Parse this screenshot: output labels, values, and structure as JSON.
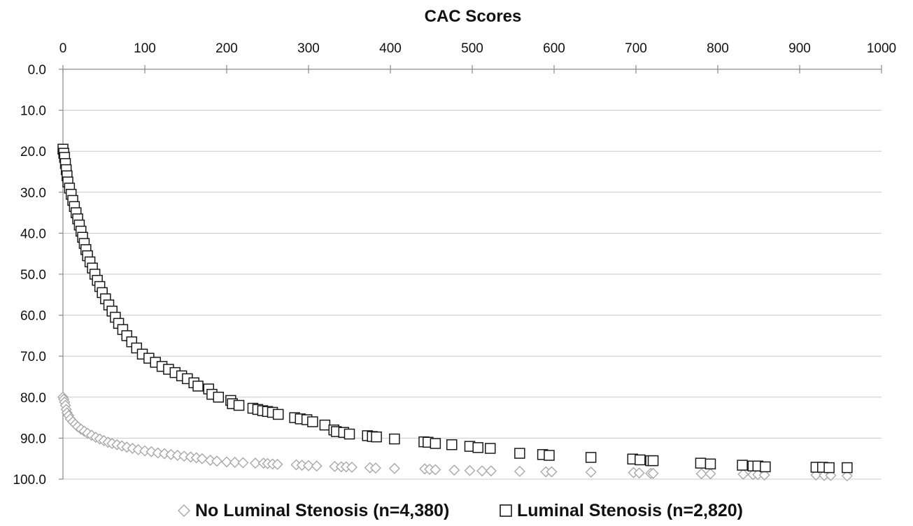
{
  "chart_data": {
    "type": "scatter",
    "title": "CAC Scores",
    "xlabel": "",
    "ylabel": "",
    "x_axis_position": "top",
    "y_axis_inverted": true,
    "xlim": [
      0,
      1000
    ],
    "ylim": [
      0,
      100
    ],
    "x_ticks": [
      "0",
      "100",
      "200",
      "300",
      "400",
      "500",
      "600",
      "700",
      "800",
      "900",
      "1000"
    ],
    "y_ticks": [
      "0.0",
      "10.0",
      "20.0",
      "30.0",
      "40.0",
      "50.0",
      "60.0",
      "70.0",
      "80.0",
      "90.0",
      "100.0"
    ],
    "grid": "horizontal",
    "legend_position": "bottom",
    "series": [
      {
        "name": "No Luminal Stenosis (n=4,380)",
        "marker": "diamond",
        "color": "#a8a8a8",
        "points": [
          [
            0,
            80.0
          ],
          [
            1,
            80.5
          ],
          [
            2,
            81.2
          ],
          [
            3,
            82.0
          ],
          [
            4,
            83.0
          ],
          [
            5,
            83.8
          ],
          [
            7,
            84.5
          ],
          [
            9,
            85.3
          ],
          [
            12,
            86.0
          ],
          [
            15,
            86.6
          ],
          [
            18,
            87.2
          ],
          [
            22,
            87.8
          ],
          [
            26,
            88.3
          ],
          [
            30,
            88.8
          ],
          [
            35,
            89.3
          ],
          [
            40,
            89.8
          ],
          [
            45,
            90.2
          ],
          [
            50,
            90.6
          ],
          [
            55,
            91.0
          ],
          [
            60,
            91.3
          ],
          [
            66,
            91.6
          ],
          [
            72,
            91.9
          ],
          [
            78,
            92.2
          ],
          [
            85,
            92.5
          ],
          [
            92,
            92.8
          ],
          [
            100,
            93.1
          ],
          [
            108,
            93.3
          ],
          [
            116,
            93.6
          ],
          [
            124,
            93.8
          ],
          [
            132,
            94.0
          ],
          [
            140,
            94.2
          ],
          [
            148,
            94.4
          ],
          [
            156,
            94.6
          ],
          [
            163,
            94.8
          ],
          [
            170,
            95.0
          ],
          [
            180,
            95.4
          ],
          [
            188,
            95.6
          ],
          [
            200,
            95.8
          ],
          [
            210,
            95.9
          ],
          [
            220,
            96.0
          ],
          [
            235,
            96.1
          ],
          [
            245,
            96.1
          ],
          [
            250,
            96.2
          ],
          [
            256,
            96.3
          ],
          [
            262,
            96.4
          ],
          [
            285,
            96.5
          ],
          [
            292,
            96.6
          ],
          [
            300,
            96.7
          ],
          [
            310,
            96.8
          ],
          [
            332,
            96.9
          ],
          [
            340,
            97.0
          ],
          [
            346,
            97.0
          ],
          [
            353,
            97.1
          ],
          [
            375,
            97.2
          ],
          [
            382,
            97.3
          ],
          [
            405,
            97.4
          ],
          [
            442,
            97.5
          ],
          [
            448,
            97.6
          ],
          [
            455,
            97.7
          ],
          [
            478,
            97.8
          ],
          [
            497,
            97.9
          ],
          [
            512,
            98.0
          ],
          [
            523,
            98.0
          ],
          [
            558,
            98.1
          ],
          [
            590,
            98.2
          ],
          [
            597,
            98.2
          ],
          [
            645,
            98.3
          ],
          [
            697,
            98.4
          ],
          [
            704,
            98.5
          ],
          [
            718,
            98.6
          ],
          [
            721,
            98.6
          ],
          [
            780,
            98.7
          ],
          [
            791,
            98.7
          ],
          [
            831,
            98.8
          ],
          [
            843,
            98.9
          ],
          [
            849,
            98.9
          ],
          [
            857,
            99.0
          ],
          [
            920,
            99.0
          ],
          [
            930,
            99.1
          ],
          [
            938,
            99.1
          ],
          [
            958,
            99.2
          ]
        ]
      },
      {
        "name": "Luminal Stenosis (n=2,820)",
        "marker": "square",
        "color": "#1a1a1a",
        "points": [
          [
            0,
            19.5
          ],
          [
            1,
            20.5
          ],
          [
            2,
            21.5
          ],
          [
            3,
            23.0
          ],
          [
            4,
            24.5
          ],
          [
            5,
            26.0
          ],
          [
            6,
            27.5
          ],
          [
            8,
            29.0
          ],
          [
            10,
            30.5
          ],
          [
            12,
            32.0
          ],
          [
            14,
            33.5
          ],
          [
            16,
            35.0
          ],
          [
            18,
            36.5
          ],
          [
            20,
            38.0
          ],
          [
            22,
            39.5
          ],
          [
            24,
            41.0
          ],
          [
            26,
            42.5
          ],
          [
            28,
            44.0
          ],
          [
            30,
            45.5
          ],
          [
            33,
            47.0
          ],
          [
            36,
            48.5
          ],
          [
            39,
            50.0
          ],
          [
            42,
            51.5
          ],
          [
            45,
            53.0
          ],
          [
            48,
            54.5
          ],
          [
            52,
            56.0
          ],
          [
            56,
            57.5
          ],
          [
            60,
            59.0
          ],
          [
            64,
            60.5
          ],
          [
            68,
            62.0
          ],
          [
            73,
            63.5
          ],
          [
            78,
            65.0
          ],
          [
            84,
            66.5
          ],
          [
            90,
            68.0
          ],
          [
            97,
            69.5
          ],
          [
            105,
            70.5
          ],
          [
            113,
            71.5
          ],
          [
            121,
            72.5
          ],
          [
            129,
            73.2
          ],
          [
            137,
            74.0
          ],
          [
            145,
            74.8
          ],
          [
            152,
            75.5
          ],
          [
            160,
            76.5
          ],
          [
            165,
            77.3
          ],
          [
            178,
            78.0
          ],
          [
            182,
            79.3
          ],
          [
            190,
            80.0
          ],
          [
            205,
            80.8
          ],
          [
            207,
            81.6
          ],
          [
            215,
            82.0
          ],
          [
            232,
            82.7
          ],
          [
            238,
            83.0
          ],
          [
            244,
            83.3
          ],
          [
            250,
            83.5
          ],
          [
            256,
            83.7
          ],
          [
            263,
            84.2
          ],
          [
            283,
            85.0
          ],
          [
            290,
            85.3
          ],
          [
            298,
            85.5
          ],
          [
            305,
            86.0
          ],
          [
            320,
            86.8
          ],
          [
            331,
            88.0
          ],
          [
            334,
            88.4
          ],
          [
            343,
            88.6
          ],
          [
            350,
            89.0
          ],
          [
            372,
            89.4
          ],
          [
            378,
            89.6
          ],
          [
            383,
            89.7
          ],
          [
            405,
            90.2
          ],
          [
            441,
            90.9
          ],
          [
            446,
            91.0
          ],
          [
            455,
            91.3
          ],
          [
            475,
            91.6
          ],
          [
            497,
            92.0
          ],
          [
            507,
            92.3
          ],
          [
            522,
            92.5
          ],
          [
            558,
            93.7
          ],
          [
            586,
            94.0
          ],
          [
            594,
            94.2
          ],
          [
            645,
            94.7
          ],
          [
            696,
            95.1
          ],
          [
            705,
            95.3
          ],
          [
            718,
            95.5
          ],
          [
            721,
            95.5
          ],
          [
            779,
            96.1
          ],
          [
            791,
            96.3
          ],
          [
            830,
            96.6
          ],
          [
            843,
            96.8
          ],
          [
            849,
            96.8
          ],
          [
            858,
            97.0
          ],
          [
            920,
            97.1
          ],
          [
            928,
            97.1
          ],
          [
            936,
            97.2
          ],
          [
            958,
            97.2
          ]
        ]
      }
    ]
  }
}
